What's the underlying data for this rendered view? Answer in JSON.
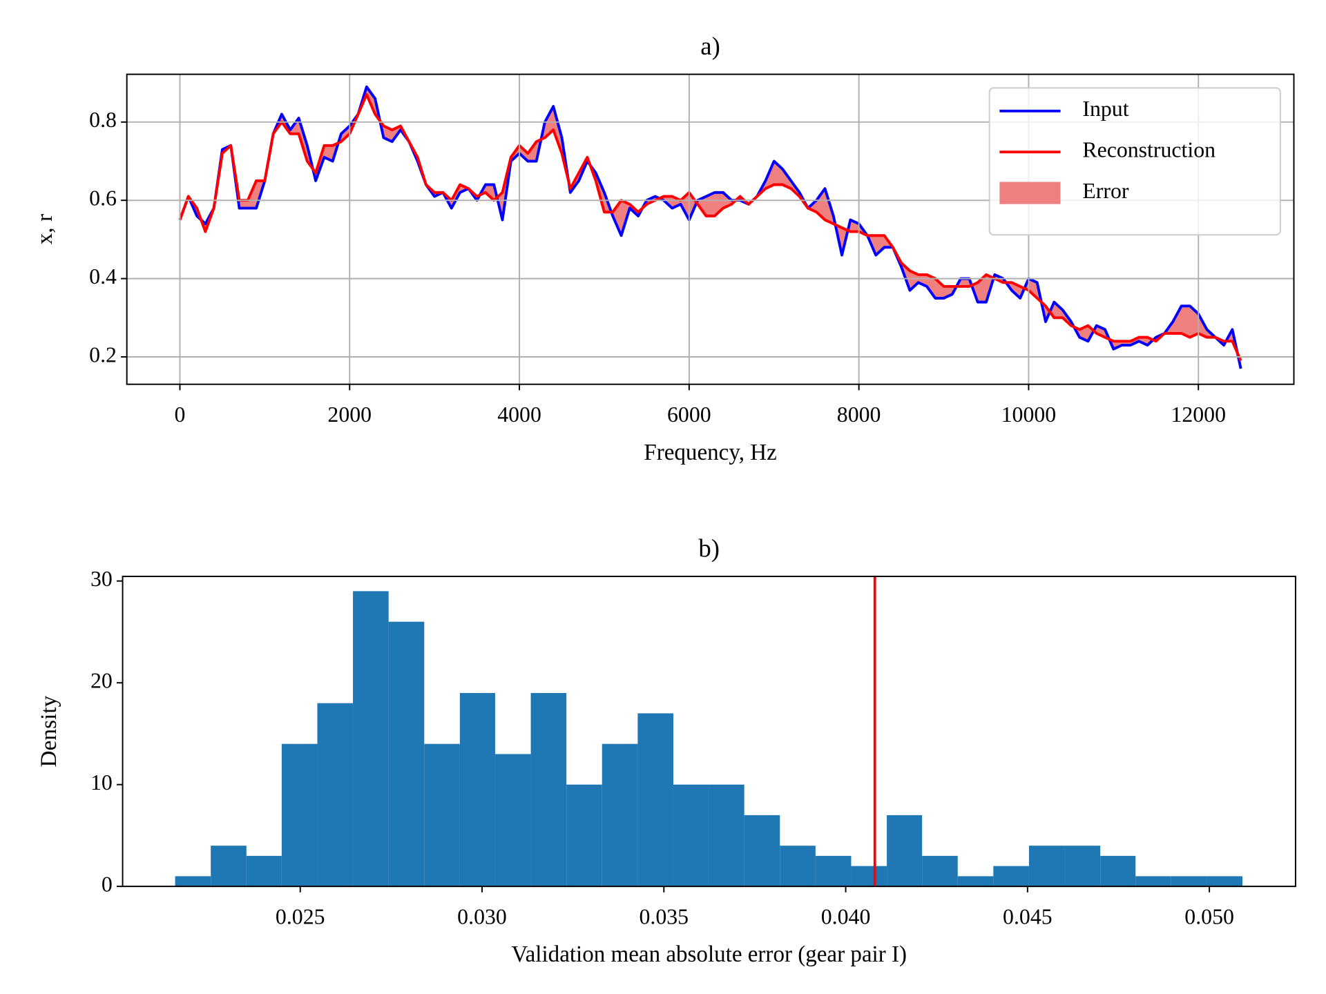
{
  "chart_data": [
    {
      "type": "line",
      "title": "a)",
      "xlabel": "Frequency, Hz",
      "ylabel": "x, r",
      "x": [
        0,
        100,
        200,
        300,
        400,
        500,
        600,
        700,
        800,
        900,
        1000,
        1100,
        1200,
        1300,
        1400,
        1500,
        1600,
        1700,
        1800,
        1900,
        2000,
        2100,
        2200,
        2300,
        2400,
        2500,
        2600,
        2700,
        2800,
        2900,
        3000,
        3100,
        3200,
        3300,
        3400,
        3500,
        3600,
        3700,
        3800,
        3900,
        4000,
        4100,
        4200,
        4300,
        4400,
        4500,
        4600,
        4700,
        4800,
        4900,
        5000,
        5100,
        5200,
        5300,
        5400,
        5500,
        5600,
        5700,
        5800,
        5900,
        6000,
        6100,
        6200,
        6300,
        6400,
        6500,
        6600,
        6700,
        6800,
        6900,
        7000,
        7100,
        7200,
        7300,
        7400,
        7500,
        7600,
        7700,
        7800,
        7900,
        8000,
        8100,
        8200,
        8300,
        8400,
        8500,
        8600,
        8700,
        8800,
        8900,
        9000,
        9100,
        9200,
        9300,
        9400,
        9500,
        9600,
        9700,
        9800,
        9900,
        10000,
        10100,
        10200,
        10300,
        10400,
        10500,
        10600,
        10700,
        10800,
        10900,
        11000,
        11100,
        11200,
        11300,
        11400,
        11500,
        11600,
        11700,
        11800,
        11900,
        12000,
        12100,
        12200,
        12300,
        12400,
        12500
      ],
      "series": [
        {
          "name": "Input",
          "color": "#0000ff",
          "values": [
            0.55,
            0.61,
            0.56,
            0.54,
            0.58,
            0.73,
            0.74,
            0.58,
            0.58,
            0.58,
            0.65,
            0.77,
            0.82,
            0.78,
            0.81,
            0.74,
            0.65,
            0.71,
            0.7,
            0.77,
            0.79,
            0.82,
            0.89,
            0.86,
            0.76,
            0.75,
            0.78,
            0.75,
            0.7,
            0.64,
            0.61,
            0.62,
            0.58,
            0.62,
            0.63,
            0.6,
            0.64,
            0.64,
            0.55,
            0.7,
            0.72,
            0.7,
            0.7,
            0.8,
            0.84,
            0.76,
            0.62,
            0.65,
            0.7,
            0.67,
            0.62,
            0.56,
            0.51,
            0.58,
            0.56,
            0.6,
            0.61,
            0.6,
            0.58,
            0.59,
            0.55,
            0.6,
            0.61,
            0.62,
            0.62,
            0.6,
            0.6,
            0.59,
            0.61,
            0.65,
            0.7,
            0.68,
            0.65,
            0.62,
            0.58,
            0.6,
            0.63,
            0.56,
            0.46,
            0.55,
            0.54,
            0.51,
            0.46,
            0.48,
            0.48,
            0.43,
            0.37,
            0.39,
            0.38,
            0.35,
            0.35,
            0.36,
            0.4,
            0.4,
            0.34,
            0.34,
            0.41,
            0.4,
            0.37,
            0.35,
            0.4,
            0.39,
            0.29,
            0.34,
            0.32,
            0.29,
            0.25,
            0.24,
            0.28,
            0.27,
            0.22,
            0.23,
            0.23,
            0.24,
            0.23,
            0.25,
            0.26,
            0.29,
            0.33,
            0.33,
            0.31,
            0.27,
            0.25,
            0.23,
            0.27,
            0.17
          ]
        },
        {
          "name": "Reconstruction",
          "color": "#ff0000",
          "values": [
            0.55,
            0.61,
            0.58,
            0.52,
            0.58,
            0.72,
            0.74,
            0.6,
            0.6,
            0.65,
            0.65,
            0.77,
            0.8,
            0.77,
            0.77,
            0.7,
            0.67,
            0.74,
            0.74,
            0.75,
            0.77,
            0.82,
            0.87,
            0.82,
            0.79,
            0.78,
            0.79,
            0.75,
            0.71,
            0.64,
            0.62,
            0.62,
            0.6,
            0.64,
            0.63,
            0.61,
            0.62,
            0.6,
            0.62,
            0.71,
            0.74,
            0.72,
            0.75,
            0.76,
            0.78,
            0.72,
            0.63,
            0.67,
            0.71,
            0.65,
            0.57,
            0.57,
            0.6,
            0.59,
            0.57,
            0.59,
            0.6,
            0.61,
            0.61,
            0.6,
            0.62,
            0.59,
            0.56,
            0.56,
            0.58,
            0.59,
            0.61,
            0.59,
            0.61,
            0.63,
            0.64,
            0.64,
            0.63,
            0.61,
            0.58,
            0.57,
            0.55,
            0.54,
            0.53,
            0.52,
            0.52,
            0.51,
            0.51,
            0.51,
            0.48,
            0.44,
            0.42,
            0.41,
            0.41,
            0.4,
            0.38,
            0.38,
            0.38,
            0.38,
            0.39,
            0.41,
            0.4,
            0.39,
            0.39,
            0.38,
            0.37,
            0.35,
            0.33,
            0.3,
            0.3,
            0.28,
            0.27,
            0.28,
            0.26,
            0.25,
            0.24,
            0.24,
            0.24,
            0.25,
            0.25,
            0.24,
            0.26,
            0.26,
            0.26,
            0.25,
            0.26,
            0.25,
            0.25,
            0.24,
            0.24,
            0.19
          ]
        }
      ],
      "fill_between": {
        "name": "Error",
        "color": "#f08080"
      },
      "xlim": [
        -625,
        13125
      ],
      "ylim": [
        0.13,
        0.922
      ],
      "xticks": [
        0,
        2000,
        4000,
        6000,
        8000,
        10000,
        12000
      ],
      "yticks": [
        0.2,
        0.4,
        0.6,
        0.8
      ],
      "grid": true,
      "legend": "upper right"
    },
    {
      "type": "histogram",
      "title": "b)",
      "xlabel": "Validation mean absolute error (gear pair I)",
      "ylabel": "Density",
      "bins": [
        0.02156,
        0.02254,
        0.02352,
        0.02449,
        0.02547,
        0.02645,
        0.02743,
        0.02841,
        0.02939,
        0.03036,
        0.03134,
        0.03232,
        0.0333,
        0.03428,
        0.03526,
        0.03623,
        0.03721,
        0.03819,
        0.03917,
        0.04015,
        0.04113,
        0.0421,
        0.04308,
        0.04406,
        0.04504,
        0.04602,
        0.047,
        0.04797,
        0.04895,
        0.04993,
        0.05091
      ],
      "counts": [
        1,
        4,
        3,
        14,
        18,
        29,
        26,
        14,
        19,
        13,
        19,
        10,
        14,
        17,
        10,
        10,
        7,
        4,
        3,
        2,
        7,
        3,
        1,
        2,
        4,
        4,
        3,
        1,
        1,
        1
      ],
      "color": "#1f77b4",
      "vline": {
        "value": 0.0408,
        "color": "#ff0000"
      },
      "xlim": [
        0.020116,
        0.05237
      ],
      "ylim": [
        0,
        30.45
      ],
      "xticks": [
        0.025,
        {
          "value": 0.03,
          "label": "0.030"
        },
        0.035,
        {
          "value": 0.04,
          "label": "0.040"
        },
        0.045,
        {
          "value": 0.05,
          "label": "0.050"
        }
      ],
      "yticks": [
        0,
        10,
        20,
        30
      ],
      "grid": false
    }
  ]
}
